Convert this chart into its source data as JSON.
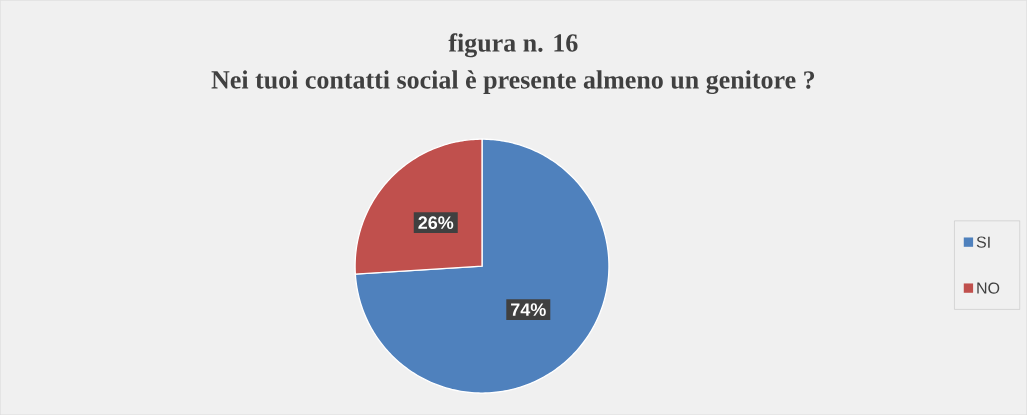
{
  "chart_data": {
    "type": "pie",
    "title": "figura n. 16",
    "subtitle": "Nei tuoi contatti social è presente almeno un genitore ?",
    "categories": [
      "SI",
      "NO"
    ],
    "values": [
      74,
      26
    ],
    "colors": [
      "#4f81bd",
      "#c0504d"
    ],
    "value_labels": [
      "74%",
      "26%"
    ],
    "legend": "right"
  }
}
